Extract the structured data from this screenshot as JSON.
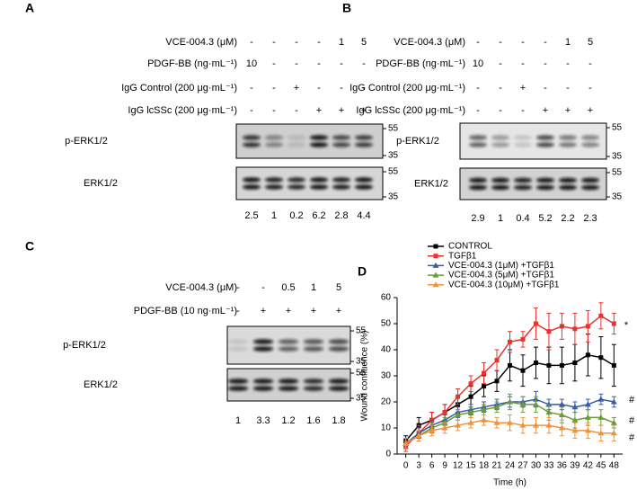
{
  "panels": [
    {
      "label": "A",
      "rows": [
        {
          "label": "VCE-004.3 (μM)",
          "lanes": [
            "-",
            "-",
            "-",
            "-",
            "1",
            "5"
          ]
        },
        {
          "label": "PDGF-BB (ng·mL⁻¹)",
          "lanes": [
            "10",
            "-",
            "-",
            "-",
            "-",
            "-"
          ]
        },
        {
          "label": "IgG Control (200 μg·mL⁻¹)",
          "lanes": [
            "-",
            "-",
            "+",
            "-",
            "-",
            "-"
          ]
        },
        {
          "label": "IgG lcSSc (200 μg·mL⁻¹)",
          "lanes": [
            "-",
            "-",
            "-",
            "+",
            "+",
            "+"
          ]
        }
      ],
      "blots": [
        {
          "label": "p-ERK1/2",
          "markers": [
            55,
            35
          ]
        },
        {
          "label": "ERK1/2",
          "markers": [
            55,
            35
          ]
        }
      ],
      "quantification": [
        2.5,
        1,
        0.2,
        6.2,
        2.8,
        4.4
      ]
    },
    {
      "label": "B",
      "rows": [
        {
          "label": "VCE-004.3 (μM)",
          "lanes": [
            "-",
            "-",
            "-",
            "-",
            "1",
            "5"
          ]
        },
        {
          "label": "PDGF-BB (ng·mL⁻¹)",
          "lanes": [
            "10",
            "-",
            "-",
            "-",
            "-",
            "-"
          ]
        },
        {
          "label": "IgG Control (200 μg·mL⁻¹)",
          "lanes": [
            "-",
            "-",
            "+",
            "-",
            "-",
            "-"
          ]
        },
        {
          "label": "IgG lcSSc (200 μg·mL⁻¹)",
          "lanes": [
            "-",
            "-",
            "-",
            "+",
            "+",
            "+"
          ]
        }
      ],
      "blots": [
        {
          "label": "p-ERK1/2",
          "markers": [
            55,
            35
          ]
        },
        {
          "label": "ERK1/2",
          "markers": [
            55,
            35
          ]
        }
      ],
      "quantification": [
        2.9,
        1,
        0.4,
        5.2,
        2.2,
        2.3
      ]
    },
    {
      "label": "C",
      "rows": [
        {
          "label": "VCE-004.3 (μM)",
          "lanes": [
            "-",
            "-",
            "0.5",
            "1",
            "5"
          ]
        },
        {
          "label": "PDGF-BB (10 ng·mL⁻¹)",
          "lanes": [
            "-",
            "+",
            "+",
            "+",
            "+"
          ]
        }
      ],
      "blots": [
        {
          "label": "p-ERK1/2",
          "markers": [
            55,
            35
          ]
        },
        {
          "label": "ERK1/2",
          "markers": [
            55,
            35
          ]
        }
      ],
      "quantification": [
        1,
        3.3,
        1.2,
        1.6,
        1.8
      ]
    }
  ],
  "chart_data": {
    "type": "line",
    "panel_label": "D",
    "x_label": "Time (h)",
    "y_label": "Wound confluence (%)",
    "x": [
      0,
      3,
      6,
      9,
      12,
      15,
      18,
      21,
      24,
      27,
      30,
      33,
      36,
      39,
      42,
      45,
      48
    ],
    "xlim": [
      -2,
      50
    ],
    "xticks": [
      0,
      3,
      6,
      9,
      12,
      15,
      18,
      21,
      24,
      27,
      30,
      33,
      36,
      39,
      42,
      45,
      48
    ],
    "ylim": [
      0,
      60
    ],
    "yticks": [
      0,
      10,
      20,
      30,
      40,
      50,
      60
    ],
    "series": [
      {
        "name": "CONTROL",
        "color": "#000000",
        "marker": "square",
        "values": [
          5,
          11,
          13,
          16,
          19,
          22,
          26,
          28,
          34,
          32,
          35,
          34,
          34,
          35,
          38,
          37,
          34
        ],
        "errors": [
          2,
          3,
          3,
          3,
          3,
          4,
          4,
          4,
          6,
          6,
          6,
          7,
          7,
          7,
          8,
          8,
          8
        ]
      },
      {
        "name": "TGFβ1",
        "color": "#e8322e",
        "marker": "square",
        "values": [
          3,
          8,
          13,
          16,
          22,
          27,
          31,
          36,
          43,
          44,
          50,
          47,
          49,
          48,
          49,
          53,
          50
        ],
        "errors": [
          2,
          3,
          3,
          3,
          3,
          3,
          4,
          4,
          4,
          3,
          6,
          7,
          5,
          6,
          6,
          5,
          4
        ]
      },
      {
        "name": "VCE-004.3 (1μM) +TGFβ1",
        "color": "#3a5ba8",
        "marker": "triangle",
        "values": [
          4,
          8,
          11,
          13,
          16,
          17,
          18,
          19,
          20,
          20,
          21,
          19,
          19,
          18,
          19,
          21,
          20
        ],
        "errors": [
          2,
          2,
          2,
          2,
          2,
          2,
          2,
          2,
          2,
          2,
          3,
          2,
          2,
          2,
          2,
          2,
          2
        ]
      },
      {
        "name": "VCE-004.3 (5μM) +TGFβ1",
        "color": "#6a9a3a",
        "marker": "triangle",
        "values": [
          4,
          7,
          10,
          12,
          15,
          16,
          17,
          18,
          20,
          19,
          19,
          16,
          15,
          13,
          14,
          14,
          12
        ],
        "errors": [
          2,
          2,
          2,
          2,
          2,
          2,
          2,
          2,
          3,
          3,
          3,
          3,
          3,
          3,
          3,
          3,
          2
        ]
      },
      {
        "name": "VCE-004.3 (10μM) +TGFβ1",
        "color": "#f0923e",
        "marker": "triangle",
        "values": [
          4,
          7,
          9,
          10,
          11,
          12,
          13,
          12,
          12,
          11,
          11,
          11,
          10,
          9,
          9,
          8,
          8
        ],
        "errors": [
          2,
          2,
          2,
          2,
          2,
          2,
          2,
          2,
          3,
          3,
          3,
          3,
          3,
          3,
          3,
          3,
          3
        ]
      }
    ],
    "annotations": [
      "*",
      "#",
      "#",
      "#"
    ]
  }
}
